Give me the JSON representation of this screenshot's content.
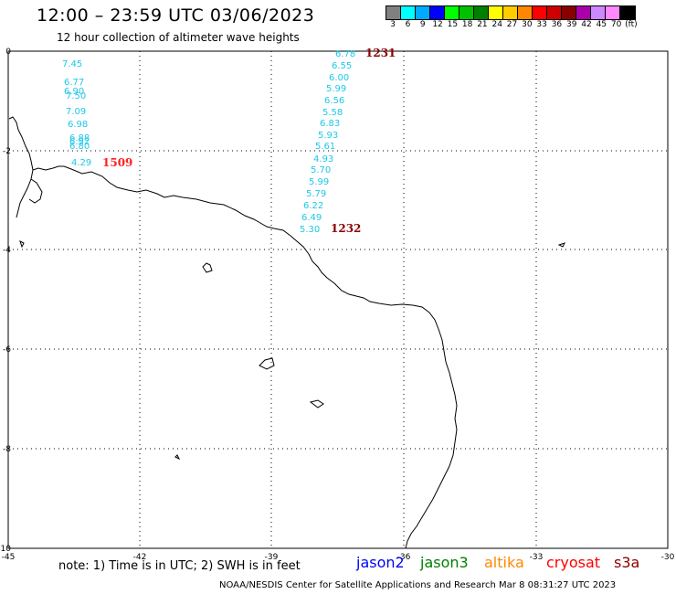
{
  "title": "12:00 – 23:59 UTC 03/06/2023",
  "subtitle": "12 hour collection of altimeter wave heights",
  "legend": {
    "colors": [
      "#808080",
      "#00ffff",
      "#00aaff",
      "#0000ff",
      "#00ff00",
      "#00c000",
      "#008000",
      "#ffff00",
      "#ffcc00",
      "#ff8800",
      "#ff0000",
      "#cc0000",
      "#880000",
      "#aa00aa",
      "#cc88ff",
      "#ff88ff",
      "#000000"
    ],
    "labels": [
      "3",
      "6",
      "9",
      "12",
      "15",
      "18",
      "21",
      "24",
      "27",
      "30",
      "33",
      "36",
      "39",
      "42",
      "45",
      "70",
      "(ft)"
    ]
  },
  "axes": {
    "x_ticks": [
      "-45",
      "-42",
      "-39",
      "-36",
      "-33",
      "-30"
    ],
    "y_ticks": [
      "0",
      "-2",
      "-4",
      "-6",
      "-8",
      "-10"
    ]
  },
  "passes": [
    {
      "label": "1509",
      "color": "#ff2020",
      "values": [
        "7.45",
        "6.77",
        "6.90",
        "7.50",
        "7.09",
        "6.98",
        "6.88",
        "6.92",
        "6.80",
        "4.29"
      ]
    },
    {
      "label": "1231",
      "color": "#8b0000",
      "values": [
        "6.78",
        "6.55",
        "6.00",
        "5.99",
        "6.56",
        "5.58",
        "6.83",
        "5.93",
        "5.61",
        "4.93",
        "5.70",
        "5.99",
        "5.79",
        "6.22",
        "6.49",
        "5.30"
      ]
    },
    {
      "label": "1232",
      "color": "#8b0000",
      "values": []
    }
  ],
  "note": "note:  1) Time is in UTC;  2) SWH is in feet",
  "satellites": [
    {
      "name": "jason2",
      "color": "#0000ff"
    },
    {
      "name": "jason3",
      "color": "#008000"
    },
    {
      "name": "altika",
      "color": "#ff8800"
    },
    {
      "name": "cryosat",
      "color": "#ff0000"
    },
    {
      "name": "s3a",
      "color": "#8b0000"
    }
  ],
  "credit": "NOAA/NESDIS Center for Satellite Applications and Research    Mar  8 08:31:27 UTC 2023"
}
